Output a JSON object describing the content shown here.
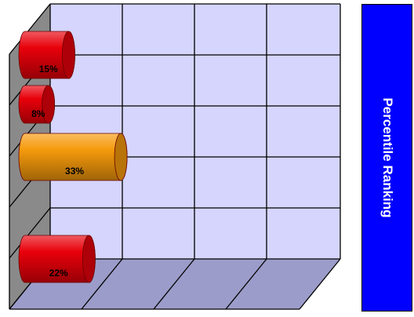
{
  "chart_data": {
    "type": "bar",
    "orientation": "horizontal",
    "style": "3d-cylinder",
    "grid": true,
    "series": [
      {
        "name": "Percentile Ranking",
        "values": [
          15,
          8,
          33,
          22
        ],
        "labels": [
          "15%",
          "8%",
          "33%",
          "22%"
        ],
        "colors": [
          "#e8000a",
          "#e8000a",
          "#f59a0c",
          "#e8000a"
        ]
      }
    ],
    "xlim": [
      0,
      100
    ],
    "legend": "right"
  },
  "legend": {
    "label": "Percentile Ranking",
    "color": "#0000ff",
    "text_color": "#ffffff"
  },
  "colors": {
    "plot_back": "#d5d5fd",
    "side_wall": "#8a8a8a",
    "floor": "#9c9cca",
    "grid": "#000000"
  }
}
